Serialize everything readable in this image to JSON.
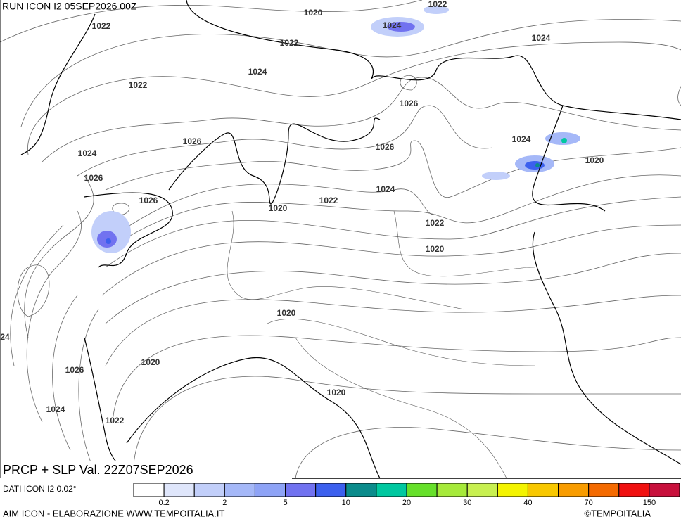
{
  "header": {
    "run": "RUN ICON I2 05SEP2026 00Z"
  },
  "isobar_labels": [
    1020,
    1022,
    1024,
    1022,
    1022,
    1024,
    1024,
    1022,
    1026,
    1026,
    1026,
    1024,
    1024,
    1026,
    1020,
    1024,
    1026,
    1022,
    1020,
    1022,
    1020,
    1020,
    24,
    1020,
    1026,
    1020,
    1024,
    1022
  ],
  "footer": {
    "title": "PRCP + SLP Val. 22Z07SEP2026",
    "source": "DATI ICON I2 0.02°",
    "credit": "AIM ICON - ELABORAZIONE WWW.TEMPOITALIA.IT",
    "copyright": "©TEMPOITALIA"
  },
  "colorbar": {
    "colors": [
      "#ffffff",
      "#dfe6fb",
      "#c2cffa",
      "#a5b8f8",
      "#8ea3f6",
      "#7172f0",
      "#3c60ee",
      "#0b8c8c",
      "#00c8a0",
      "#66e02a",
      "#a6ea3a",
      "#c8f050",
      "#f4f400",
      "#f8c800",
      "#f89c00",
      "#f46a00",
      "#f01010",
      "#c8103c"
    ],
    "ticks": [
      0.2,
      2,
      5,
      10,
      20,
      30,
      40,
      70,
      150
    ]
  }
}
